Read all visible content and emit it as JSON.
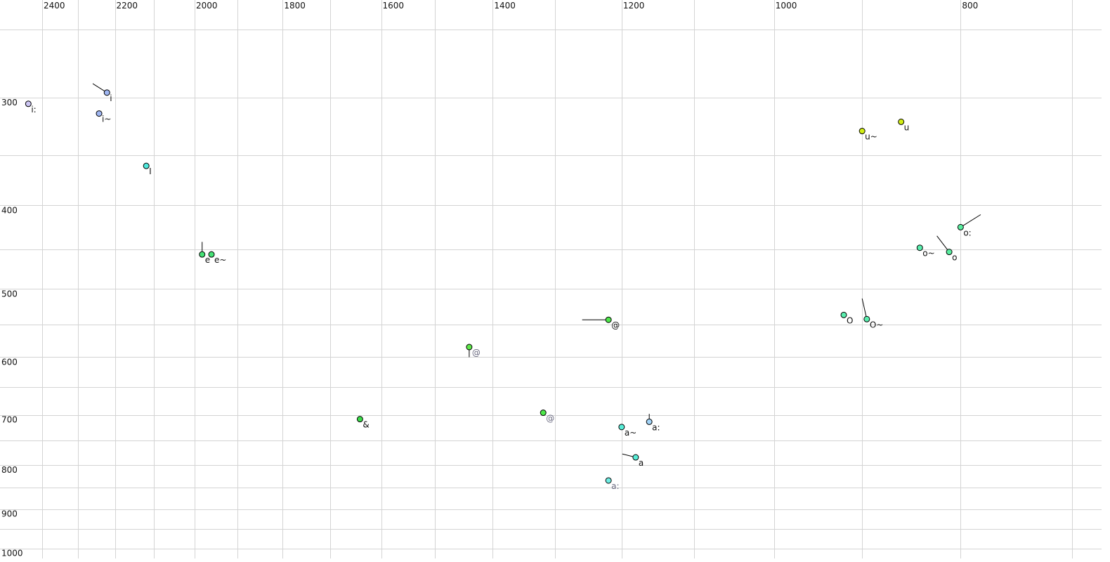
{
  "chart_data": {
    "type": "scatter",
    "title": "",
    "xlabel": "",
    "ylabel": "",
    "x_scale": "log",
    "y_scale": "log",
    "x_reversed": true,
    "y_reversed": true,
    "xlim": [
      2460,
      690
    ],
    "ylim": [
      233,
      1010
    ],
    "grid": true,
    "x_grid_step": 100,
    "y_grid_step": 50,
    "x_ticks": [
      2400,
      2200,
      2000,
      1800,
      1600,
      1400,
      1200,
      1000,
      800
    ],
    "y_ticks": [
      300,
      400,
      500,
      600,
      700,
      800,
      900,
      1000
    ],
    "axis_position": "x-top, y-left",
    "points": [
      {
        "label": "i:",
        "x": 2440,
        "y": 305,
        "color": "#cdc6f4",
        "label_color": "#111111"
      },
      {
        "label": "i",
        "x": 2221,
        "y": 296,
        "color": "#9fb6f2",
        "label_color": "#111111",
        "trail": [
          2259,
          289
        ]
      },
      {
        "label": "i~",
        "x": 2242,
        "y": 313,
        "color": "#9fb6f2",
        "label_color": "#111111"
      },
      {
        "label": "I",
        "x": 2119,
        "y": 360,
        "color": "#4ee9dc",
        "label_color": "#111111"
      },
      {
        "label": "e",
        "x": 1982,
        "y": 456,
        "color": "#46e276",
        "label_color": "#111111",
        "trail": [
          1982,
          441
        ]
      },
      {
        "label": "e~",
        "x": 1960,
        "y": 456,
        "color": "#46e276",
        "label_color": "#111111"
      },
      {
        "label": "&",
        "x": 1641,
        "y": 708,
        "color": "#3cdc4a",
        "label_color": "#111111"
      },
      {
        "label": "@",
        "x": 1440,
        "y": 584,
        "color": "#5ee84a",
        "label_color": "#6a6a80",
        "trail": [
          1440,
          600
        ]
      },
      {
        "label": "@",
        "x": 1219,
        "y": 543,
        "color": "#4ee84a",
        "label_color": "#111111",
        "trail": [
          1258,
          543
        ]
      },
      {
        "label": "@",
        "x": 1318,
        "y": 696,
        "color": "#4ee84a",
        "label_color": "#6a6a80"
      },
      {
        "label": "a~",
        "x": 1200,
        "y": 723,
        "color": "#58eed8",
        "label_color": "#111111"
      },
      {
        "label": "a:",
        "x": 1161,
        "y": 713,
        "color": "#a2d4f8",
        "label_color": "#111111",
        "trail": [
          1161,
          698
        ]
      },
      {
        "label": "a",
        "x": 1180,
        "y": 784,
        "color": "#58eed8",
        "label_color": "#111111",
        "trail": [
          1199,
          777
        ]
      },
      {
        "label": "a:",
        "x": 1219,
        "y": 834,
        "color": "#6eeee4",
        "label_color": "#6a6a80"
      },
      {
        "label": "O",
        "x": 920,
        "y": 536,
        "color": "#5aeeae",
        "label_color": "#111111"
      },
      {
        "label": "O~",
        "x": 895,
        "y": 542,
        "color": "#5aeeae",
        "label_color": "#111111",
        "trail": [
          900,
          513
        ]
      },
      {
        "label": "o~",
        "x": 840,
        "y": 448,
        "color": "#5aeeae",
        "label_color": "#111111"
      },
      {
        "label": "o",
        "x": 811,
        "y": 453,
        "color": "#5aeea0",
        "label_color": "#111111",
        "trail": [
          823,
          434
        ]
      },
      {
        "label": "o:",
        "x": 800,
        "y": 424,
        "color": "#5aeea0",
        "label_color": "#111111",
        "trail": [
          781,
          410
        ]
      },
      {
        "label": "u~",
        "x": 900,
        "y": 328,
        "color": "#d2ee14",
        "label_color": "#111111"
      },
      {
        "label": "u",
        "x": 859,
        "y": 320,
        "color": "#d2ee14",
        "label_color": "#111111"
      }
    ]
  }
}
